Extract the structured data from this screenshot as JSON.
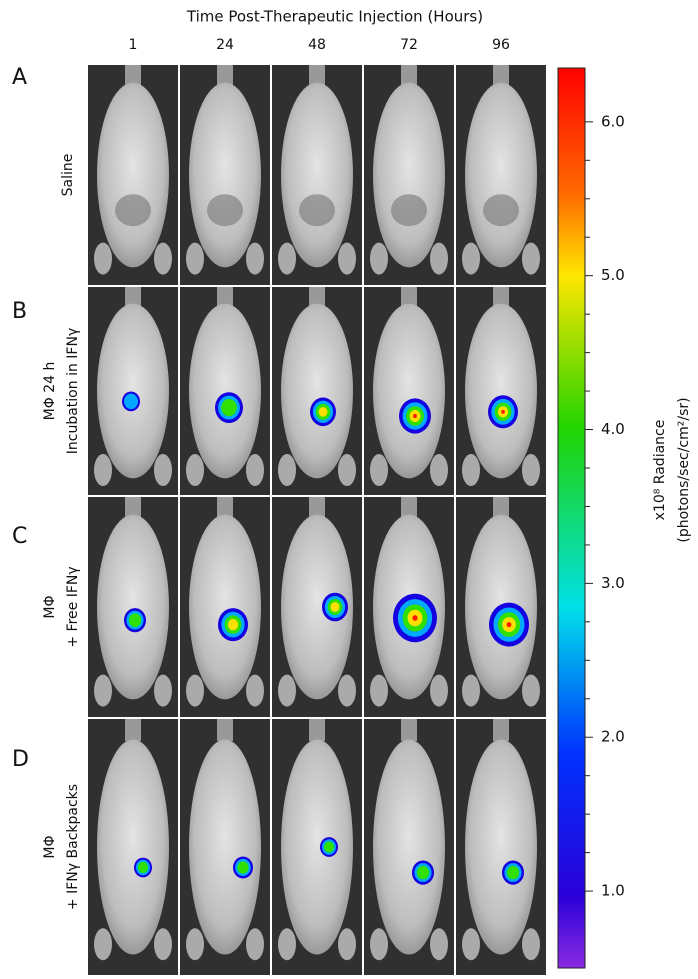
{
  "header": {
    "title": "Time Post-Therapeutic Injection (Hours)",
    "columns": [
      "1",
      "24",
      "48",
      "72",
      "96"
    ]
  },
  "rows": [
    {
      "letter": "A",
      "label": [
        "Saline"
      ]
    },
    {
      "letter": "B",
      "label": [
        "MΦ 24 h",
        "Incubation in IFNγ"
      ]
    },
    {
      "letter": "C",
      "label": [
        "MΦ",
        "+ Free IFNγ"
      ]
    },
    {
      "letter": "D",
      "label": [
        "MΦ",
        "+ IFNγ Backpacks"
      ]
    }
  ],
  "colorbar": {
    "range": [
      0.5,
      6.35
    ],
    "ticks": [
      {
        "value": 1,
        "label": "1.0"
      },
      {
        "value": 2,
        "label": "2.0"
      },
      {
        "value": 3,
        "label": "3.0"
      },
      {
        "value": 4,
        "label": "4.0"
      },
      {
        "value": 5,
        "label": "5.0"
      },
      {
        "value": 6,
        "label": "6.0"
      }
    ],
    "label": [
      "x10⁸ Radiance",
      "(photons/sec/cm²/sr)"
    ]
  }
}
